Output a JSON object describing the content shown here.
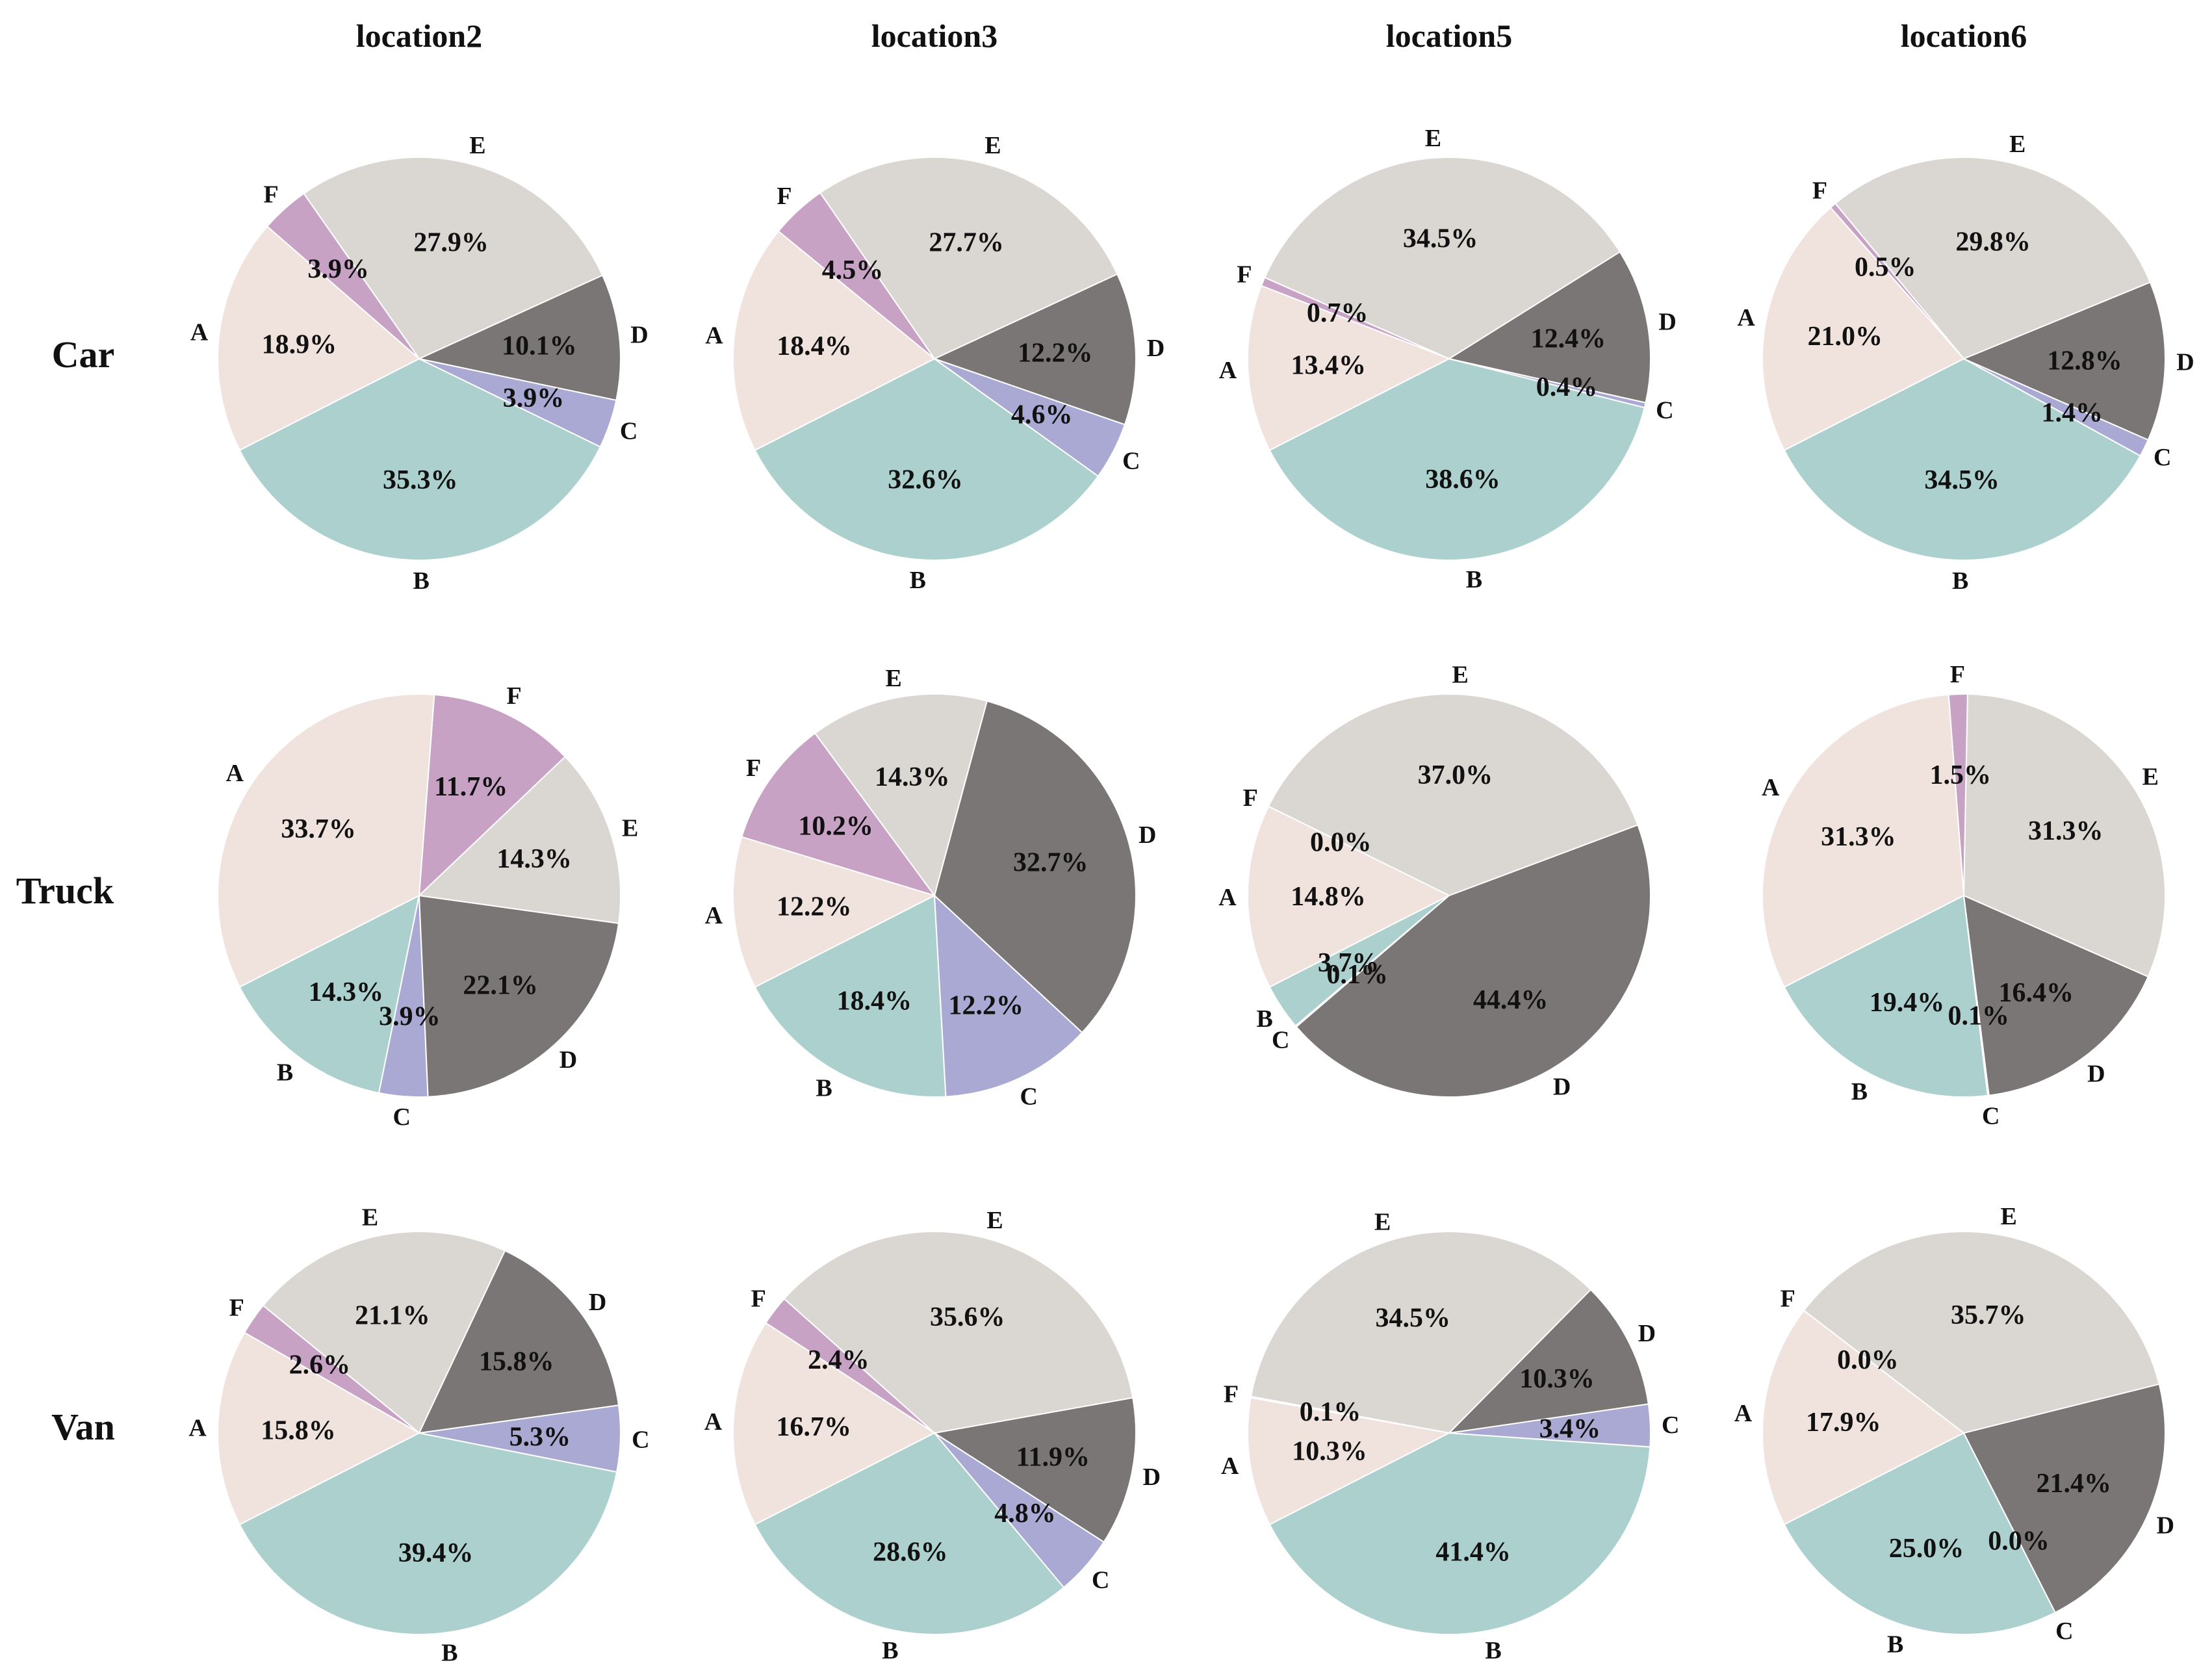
{
  "chart_data": {
    "type": "pie",
    "columns": [
      "location2",
      "location3",
      "location5",
      "location6"
    ],
    "rows": [
      "Car",
      "Truck",
      "Van"
    ],
    "categories": [
      "A",
      "B",
      "C",
      "D",
      "E",
      "F"
    ],
    "colors": {
      "A": "#f0e3de",
      "B": "#abd0cd",
      "C": "#a9a9d3",
      "D": "#7a7675",
      "E": "#dad6d2",
      "F": "#c7a2c4"
    },
    "pies": [
      [
        {
          "A": 18.9,
          "B": 35.3,
          "C": 3.9,
          "D": 10.1,
          "E": 27.9,
          "F": 3.9
        },
        {
          "A": 18.4,
          "B": 32.6,
          "C": 4.6,
          "D": 12.2,
          "E": 27.7,
          "F": 4.5
        },
        {
          "A": 13.4,
          "B": 38.6,
          "C": 0.4,
          "D": 12.4,
          "E": 34.5,
          "F": 0.7
        },
        {
          "A": 21.0,
          "B": 34.5,
          "C": 1.4,
          "D": 12.8,
          "E": 29.8,
          "F": 0.5
        }
      ],
      [
        {
          "A": 33.7,
          "B": 14.3,
          "C": 3.9,
          "D": 22.1,
          "E": 14.3,
          "F": 11.7
        },
        {
          "A": 12.2,
          "B": 18.4,
          "C": 12.2,
          "D": 32.7,
          "E": 14.3,
          "F": 10.2
        },
        {
          "A": 14.8,
          "B": 3.7,
          "C": 0.1,
          "D": 44.4,
          "E": 37.0,
          "F": 0.0
        },
        {
          "A": 31.3,
          "B": 19.4,
          "C": 0.1,
          "D": 16.4,
          "E": 31.3,
          "F": 1.5
        }
      ],
      [
        {
          "A": 15.8,
          "B": 39.4,
          "C": 5.3,
          "D": 15.8,
          "E": 21.1,
          "F": 2.6
        },
        {
          "A": 16.7,
          "B": 28.6,
          "C": 4.8,
          "D": 11.9,
          "E": 35.6,
          "F": 2.4
        },
        {
          "A": 10.3,
          "B": 41.4,
          "C": 3.4,
          "D": 10.3,
          "E": 34.5,
          "F": 0.1
        },
        {
          "A": 17.9,
          "B": 25.0,
          "C": 0.0,
          "D": 21.4,
          "E": 35.7,
          "F": 0.0
        }
      ]
    ]
  }
}
